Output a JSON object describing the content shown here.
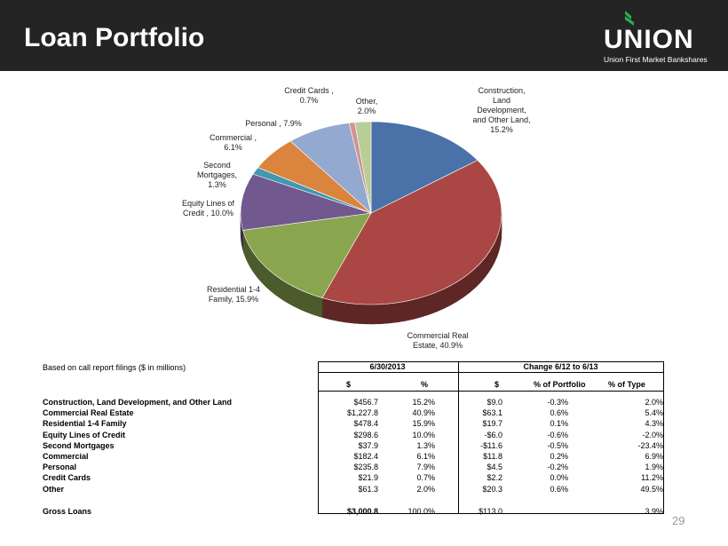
{
  "header": {
    "title": "Loan Portfolio",
    "logo_word": "UNION",
    "logo_sub": "Union First Market Bankshares"
  },
  "chart_data": {
    "type": "pie",
    "title": "",
    "categories": [
      "Construction, Land Development, and Other Land",
      "Commercial Real Estate",
      "Residential 1-4 Family",
      "Equity Lines of Credit",
      "Second Mortgages",
      "Commercial",
      "Personal",
      "Credit Cards",
      "Other"
    ],
    "values": [
      15.2,
      40.9,
      15.9,
      10.0,
      1.3,
      6.1,
      7.9,
      0.7,
      2.0
    ],
    "colors": [
      "#4a72a8",
      "#aa4643",
      "#89a54e",
      "#71588f",
      "#4198af",
      "#db843d",
      "#93a9cf",
      "#d19392",
      "#b9cd96"
    ],
    "labels": [
      "Construction,\nLand\nDevelopment,\nand Other Land,\n15.2%",
      "Commercial Real\nEstate, 40.9%",
      "Residential 1-4\nFamily, 15.9%",
      "Equity Lines of\nCredit , 10.0%",
      "Second\nMortgages,\n1.3%",
      "Commercial ,\n6.1%",
      "Personal , 7.9%",
      "Credit Cards ,\n0.7%",
      "Other,\n2.0%"
    ]
  },
  "table": {
    "note": "Based on call report filings ($ in millions)",
    "group1": "6/30/2013",
    "group2": "Change 6/12 to 6/13",
    "cols": [
      "$",
      "%",
      "$",
      "% of Portfolio",
      "% of Type"
    ],
    "rows": [
      [
        "Construction, Land Development, and Other Land",
        "$456.7",
        "15.2%",
        "$9.0",
        "-0.3%",
        "2.0%"
      ],
      [
        "Commercial Real Estate",
        "$1,227.8",
        "40.9%",
        "$63.1",
        "0.6%",
        "5.4%"
      ],
      [
        "Residential 1-4 Family",
        "$478.4",
        "15.9%",
        "$19.7",
        "0.1%",
        "4.3%"
      ],
      [
        "Equity Lines of Credit",
        "$298.6",
        "10.0%",
        "-$6.0",
        "-0.6%",
        "-2.0%"
      ],
      [
        "Second Mortgages",
        "$37.9",
        "1.3%",
        "-$11.6",
        "-0.5%",
        "-23.4%"
      ],
      [
        "Commercial",
        "$182.4",
        "6.1%",
        "$11.8",
        "0.2%",
        "6.9%"
      ],
      [
        "Personal",
        "$235.8",
        "7.9%",
        "$4.5",
        "-0.2%",
        "1.9%"
      ],
      [
        "Credit Cards",
        "$21.9",
        "0.7%",
        "$2.2",
        "0.0%",
        "11.2%"
      ],
      [
        "Other",
        "$61.3",
        "2.0%",
        "$20.3",
        "0.6%",
        "49.5%"
      ]
    ],
    "total": [
      "Gross Loans",
      "$3,000.8",
      "100.0%",
      "$113.0",
      "",
      "3.9%"
    ]
  },
  "page_number": "29"
}
